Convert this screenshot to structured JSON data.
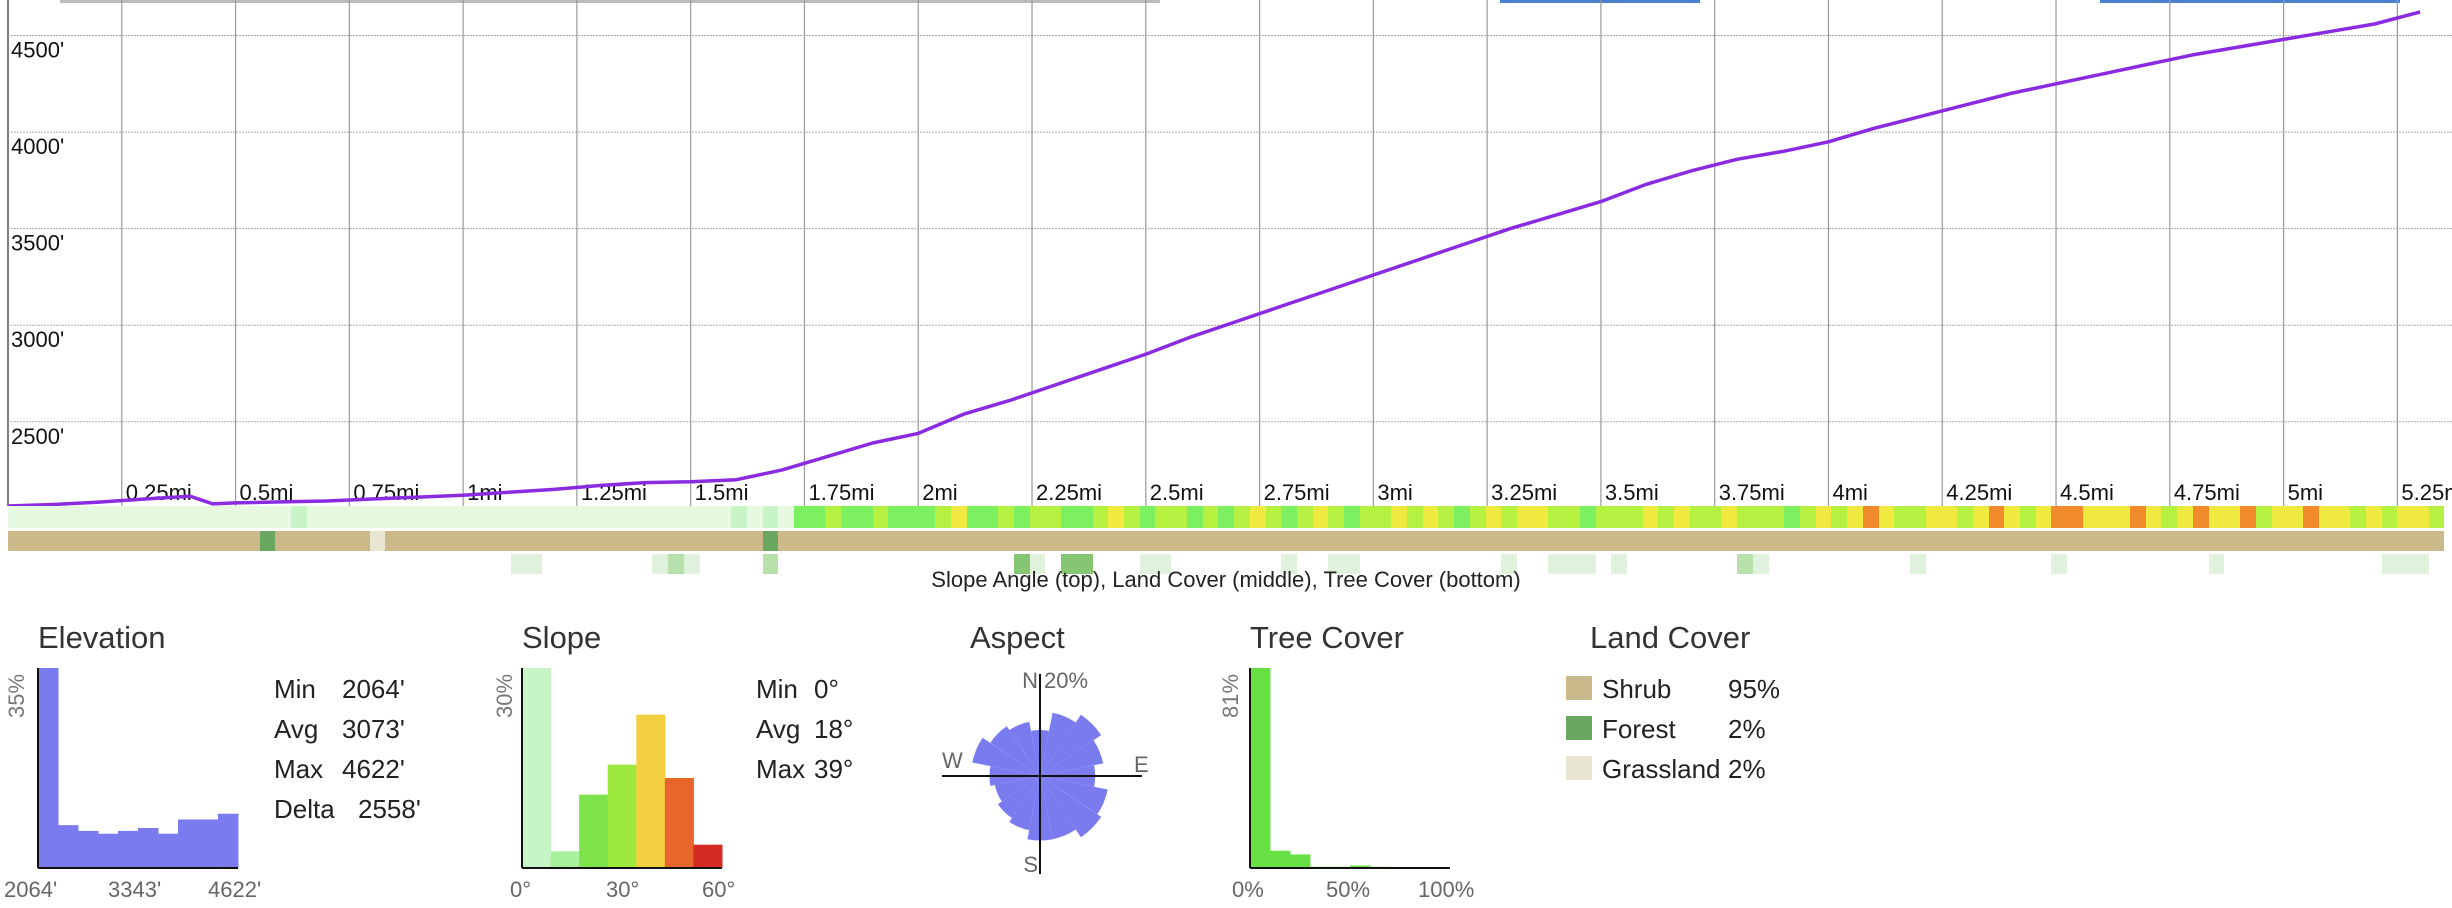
{
  "chart_data": [
    {
      "type": "line",
      "series": [
        {
          "x": [
            0,
            0.1,
            0.2,
            0.3,
            0.4,
            0.45,
            0.5,
            0.6,
            0.7,
            0.8,
            0.9,
            1.0,
            1.1,
            1.2,
            1.3,
            1.4,
            1.5,
            1.6,
            1.7,
            1.8,
            1.9,
            2.0,
            2.1,
            2.2,
            2.3,
            2.4,
            2.5,
            2.6,
            2.7,
            2.8,
            2.9,
            3.0,
            3.1,
            3.2,
            3.3,
            3.4,
            3.5,
            3.6,
            3.7,
            3.8,
            3.9,
            4.0,
            4.1,
            4.2,
            4.3,
            4.4,
            4.5,
            4.6,
            4.7,
            4.8,
            4.9,
            5.0,
            5.1,
            5.2,
            5.3
          ],
          "values": [
            2064,
            2072,
            2084,
            2100,
            2115,
            2075,
            2080,
            2085,
            2090,
            2100,
            2110,
            2120,
            2135,
            2150,
            2170,
            2185,
            2190,
            2200,
            2250,
            2320,
            2390,
            2440,
            2540,
            2610,
            2690,
            2770,
            2850,
            2940,
            3020,
            3100,
            3180,
            3260,
            3340,
            3420,
            3500,
            3570,
            3640,
            3730,
            3800,
            3860,
            3900,
            3950,
            4020,
            4080,
            4140,
            4200,
            4250,
            4300,
            4350,
            4400,
            4440,
            4480,
            4520,
            4560,
            4622
          ]
        }
      ],
      "y_ticks": [
        "2500'",
        "3000'",
        "3500'",
        "4000'",
        "4500'"
      ],
      "x_ticks": [
        "0.25mi",
        "0.5mi",
        "0.75mi",
        "1mi",
        "1.25mi",
        "1.5mi",
        "1.75mi",
        "2mi",
        "2.25mi",
        "2.5mi",
        "2.75mi",
        "3mi",
        "3.25mi",
        "3.5mi",
        "3.75mi",
        "4mi",
        "4.25mi",
        "4.5mi",
        "4.75mi",
        "5mi",
        "5.25mi"
      ],
      "ylim": [
        2064,
        4622
      ],
      "xlim": [
        0,
        5.37
      ],
      "grid": true,
      "line_color": "#8a2be2"
    },
    {
      "type": "bar",
      "title": "Elevation",
      "ylabel": "35%",
      "values": [
        35,
        7.5,
        6.5,
        6,
        6.5,
        7,
        6,
        8.5,
        8.5,
        9.5
      ],
      "x_ticks": [
        "2064'",
        "3343'",
        "4622'"
      ],
      "stats": [
        [
          "Min",
          "2064'"
        ],
        [
          "Avg",
          "3073'"
        ],
        [
          "Max",
          "4622'"
        ],
        [
          "Delta",
          "2558'"
        ]
      ],
      "color": "#7b7bf0"
    },
    {
      "type": "bar",
      "title": "Slope",
      "ylabel": "30%",
      "values": [
        30,
        2.5,
        11,
        15.5,
        23,
        13.5,
        3.5
      ],
      "colors": [
        "#c8f5c8",
        "#a8f09c",
        "#7ee24a",
        "#9ce83c",
        "#f3d040",
        "#e8662a",
        "#d42a22"
      ],
      "x_ticks": [
        "0°",
        "30°",
        "60°"
      ],
      "stats": [
        [
          "Min",
          "0°"
        ],
        [
          "Avg",
          "18°"
        ],
        [
          "Max",
          "39°"
        ]
      ]
    },
    {
      "type": "rose",
      "title": "Aspect",
      "labels": {
        "n": "N",
        "e": "E",
        "s": "S",
        "w": "W",
        "max": "20%"
      },
      "values": [
        10,
        14,
        16,
        14,
        12,
        15,
        16,
        14,
        14,
        12,
        11,
        10,
        11,
        15,
        13,
        12
      ],
      "color": "#7b7bf0"
    },
    {
      "type": "bar",
      "title": "Tree Cover",
      "ylabel": "81%",
      "values": [
        81,
        7,
        5.5,
        0.5,
        0.5,
        1,
        0.5,
        0,
        0,
        0
      ],
      "x_ticks": [
        "0%",
        "50%",
        "100%"
      ],
      "color": "#67e044"
    },
    {
      "type": "table",
      "title": "Land Cover",
      "rows": [
        {
          "label": "Shrub",
          "value": "95%",
          "color": "#cbb98a"
        },
        {
          "label": "Forest",
          "value": "2%",
          "color": "#6aa760"
        },
        {
          "label": "Grassland",
          "value": "2%",
          "color": "#e8e6d2"
        }
      ]
    }
  ],
  "strip_caption": "Slope Angle (top), Land Cover (middle), Tree Cover (bottom)",
  "strips": {
    "slope": [
      0,
      0,
      0,
      0,
      0,
      0,
      0,
      0,
      0,
      0,
      0,
      0,
      0,
      0,
      0,
      0,
      0,
      0,
      1,
      0,
      0,
      0,
      0,
      0,
      0,
      0,
      0,
      0,
      0,
      0,
      0,
      0,
      0,
      0,
      0,
      0,
      0,
      0,
      0,
      0,
      0,
      0,
      0,
      0,
      0,
      0,
      1,
      0,
      1,
      0,
      2,
      2,
      3,
      2,
      2,
      3,
      2,
      2,
      2,
      3,
      4,
      2,
      2,
      3,
      2,
      3,
      3,
      2,
      2,
      3,
      4,
      3,
      2,
      3,
      3,
      2,
      3,
      2,
      3,
      4,
      3,
      2,
      3,
      4,
      3,
      2,
      3,
      3,
      4,
      3,
      4,
      3,
      2,
      3,
      4,
      3,
      4,
      4,
      3,
      3,
      2,
      3,
      3,
      3,
      4,
      3,
      4,
      3,
      3,
      4,
      3,
      3,
      3,
      2,
      3,
      4,
      3,
      4,
      5,
      4,
      3,
      3,
      4,
      4,
      3,
      4,
      5,
      4,
      3,
      4,
      5,
      5,
      4,
      4,
      4,
      5,
      4,
      3,
      4,
      5,
      4,
      4,
      5,
      3,
      4,
      4,
      5,
      4,
      4,
      3,
      4,
      3,
      4,
      4,
      3
    ],
    "land": [
      0,
      0,
      0,
      0,
      0,
      0,
      0,
      0,
      0,
      0,
      0,
      0,
      0,
      0,
      0,
      0,
      1,
      0,
      0,
      0,
      0,
      0,
      0,
      2,
      0,
      0,
      0,
      0,
      0,
      0,
      0,
      0,
      0,
      0,
      0,
      0,
      0,
      0,
      0,
      0,
      0,
      0,
      0,
      0,
      0,
      0,
      0,
      0,
      1,
      0,
      0,
      0,
      0,
      0,
      0,
      0,
      0,
      0,
      0,
      0,
      0,
      0,
      0,
      0,
      0,
      0,
      0,
      0,
      0,
      0,
      0,
      0,
      0,
      0,
      0,
      0,
      0,
      0,
      0,
      0,
      0,
      0,
      0,
      0,
      0,
      0,
      0,
      0,
      0,
      0,
      0,
      0,
      0,
      0,
      0,
      0,
      0,
      0,
      0,
      0,
      0,
      0,
      0,
      0,
      0,
      0,
      0,
      0,
      0,
      0,
      0,
      0,
      0,
      0,
      0,
      0,
      0,
      0,
      0,
      0,
      0,
      0,
      0,
      0,
      0,
      0,
      0,
      0,
      0,
      0,
      0,
      0,
      0,
      0,
      0,
      0,
      0,
      0,
      0,
      0,
      0,
      0,
      0,
      0,
      0,
      0,
      0,
      0,
      0,
      0,
      0,
      0,
      0,
      0,
      0
    ],
    "tree": [
      0,
      0,
      0,
      0,
      0,
      0,
      0,
      0,
      0,
      0,
      0,
      0,
      0,
      0,
      0,
      0,
      0,
      0,
      0,
      0,
      0,
      0,
      0,
      0,
      0,
      0,
      0,
      0,
      0,
      0,
      0,
      0,
      1,
      1,
      0,
      0,
      0,
      0,
      0,
      0,
      0,
      1,
      2,
      1,
      0,
      0,
      0,
      0,
      2,
      0,
      0,
      0,
      0,
      0,
      0,
      0,
      0,
      0,
      0,
      0,
      0,
      0,
      0,
      0,
      3,
      1,
      0,
      3,
      3,
      0,
      0,
      0,
      1,
      1,
      0,
      0,
      0,
      0,
      0,
      0,
      0,
      1,
      0,
      0,
      1,
      1,
      0,
      0,
      0,
      0,
      0,
      0,
      0,
      0,
      0,
      1,
      0,
      0,
      1,
      1,
      1,
      0,
      1,
      0,
      0,
      0,
      0,
      0,
      0,
      0,
      2,
      1,
      0,
      0,
      0,
      0,
      0,
      0,
      0,
      0,
      0,
      1,
      0,
      0,
      0,
      0,
      0,
      0,
      0,
      0,
      1,
      0,
      0,
      0,
      0,
      0,
      0,
      0,
      0,
      0,
      1,
      0,
      0,
      0,
      0,
      0,
      0,
      0,
      0,
      0,
      0,
      1,
      1,
      1,
      0
    ],
    "slope_colors": [
      "#e6f8e0",
      "#c8f5c8",
      "#7cf060",
      "#b6f040",
      "#f0ea40",
      "#f08a2a",
      "#e04a22"
    ],
    "land_colors": [
      "#cbb98a",
      "#6aa760",
      "#e8e6d2"
    ],
    "tree_colors": [
      "#ffffff",
      "#e0f2dc",
      "#b7e0aa",
      "#84c672"
    ]
  }
}
